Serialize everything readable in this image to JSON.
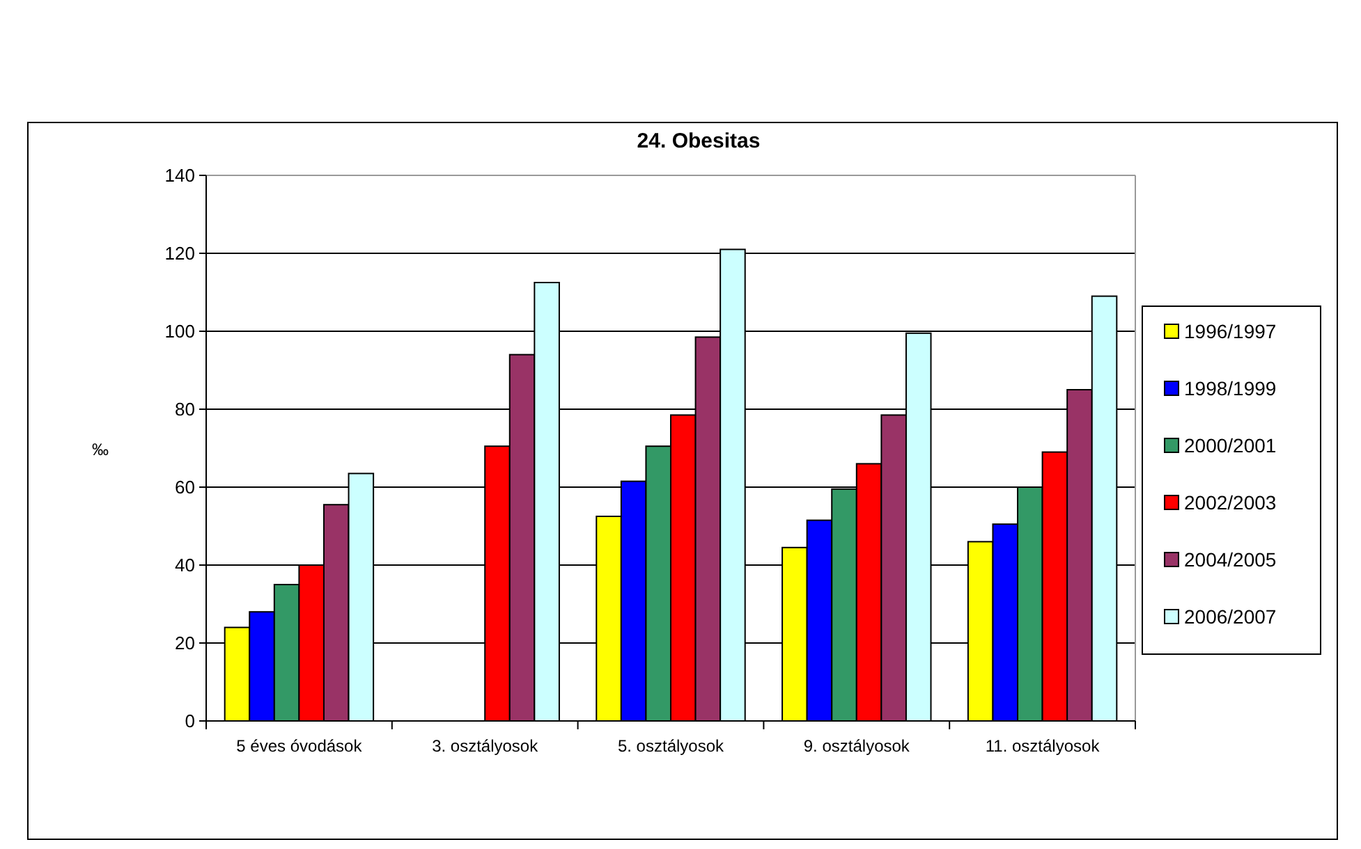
{
  "chart_data": {
    "type": "bar",
    "title": "24. Obesitas",
    "ylabel": "‰",
    "categories": [
      "5 éves óvodások",
      "3. osztályosok",
      "5. osztályosok",
      "9. osztályosok",
      "11. osztályosok"
    ],
    "series": [
      {
        "name": "1996/1997",
        "color": "#ffff00",
        "values": [
          24,
          null,
          52.5,
          44.5,
          46
        ]
      },
      {
        "name": "1998/1999",
        "color": "#0000ff",
        "values": [
          28,
          null,
          61.5,
          51.5,
          50.5
        ]
      },
      {
        "name": "2000/2001",
        "color": "#339966",
        "values": [
          35,
          null,
          70.5,
          59.5,
          60
        ]
      },
      {
        "name": "2002/2003",
        "color": "#ff0000",
        "values": [
          40,
          70.5,
          78.5,
          66,
          69
        ]
      },
      {
        "name": "2004/2005",
        "color": "#993366",
        "values": [
          55.5,
          94,
          98.5,
          78.5,
          85
        ]
      },
      {
        "name": "2006/2007",
        "color": "#ccffff",
        "values": [
          63.5,
          112.5,
          121,
          99.5,
          109
        ]
      }
    ],
    "ylim": [
      0,
      140
    ],
    "yticks": [
      0,
      20,
      40,
      60,
      80,
      100,
      120,
      140
    ],
    "grid": "y",
    "legend": "right"
  }
}
